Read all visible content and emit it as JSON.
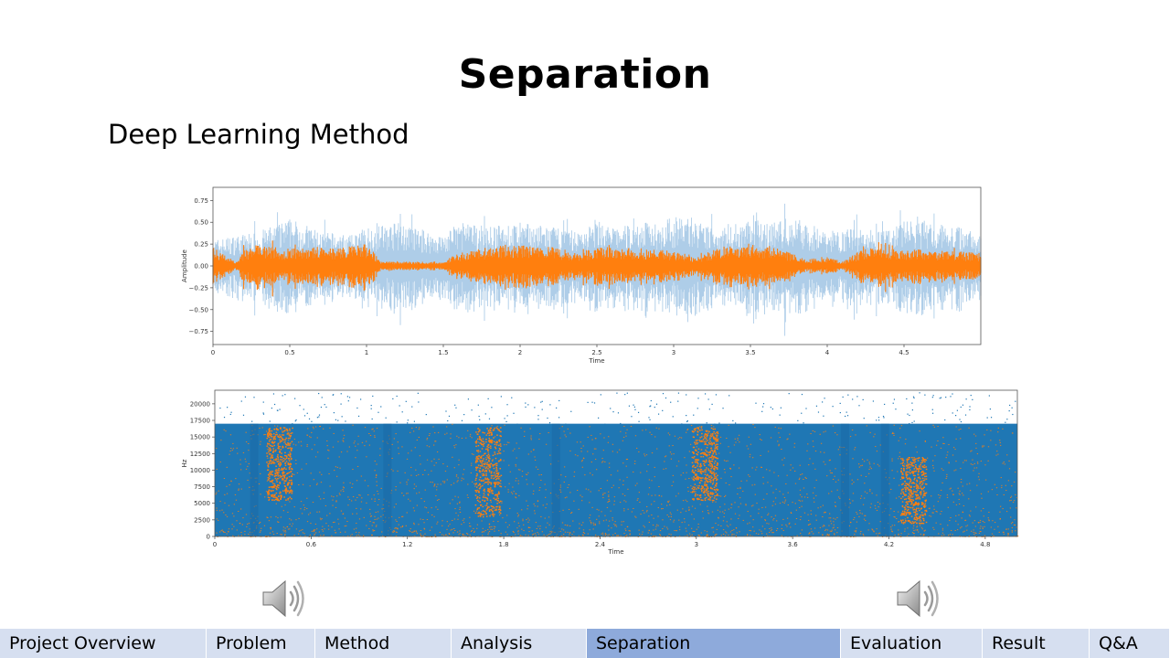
{
  "slide": {
    "title": "Separation",
    "subtitle": "Deep Learning Method"
  },
  "colors": {
    "orange": "#ff7f0e",
    "blue": "#1f77b4",
    "light_blue": "#aecde8",
    "nav_bg": "#d6dff0",
    "nav_active": "#8eaadb"
  },
  "speakers": [
    {
      "icon": "speaker-icon",
      "position": "left"
    },
    {
      "icon": "speaker-icon",
      "position": "right"
    }
  ],
  "nav": {
    "active_index": 4,
    "tabs": [
      {
        "label": "Project Overview",
        "width_hint": 226
      },
      {
        "label": "Problem",
        "width_hint": 119
      },
      {
        "label": "Method",
        "width_hint": 149
      },
      {
        "label": "Analysis",
        "width_hint": 148
      },
      {
        "label": "Separation",
        "width_hint": 278
      },
      {
        "label": "Evaluation",
        "width_hint": 155
      },
      {
        "label": "Result",
        "width_hint": 117
      },
      {
        "label": "Q&A",
        "width_hint": 88
      }
    ]
  },
  "chart_data": [
    {
      "type": "area",
      "xlabel": "Time",
      "ylabel": "Amplitude",
      "xlim": [
        0,
        5
      ],
      "ylim": [
        -0.9,
        0.9
      ],
      "xticks": [
        "0",
        "0.5",
        "1",
        "1.5",
        "2",
        "2.5",
        "3",
        "3.5",
        "4",
        "4.5"
      ],
      "xtick_values": [
        0,
        0.5,
        1,
        1.5,
        2,
        2.5,
        3,
        3.5,
        4,
        4.5
      ],
      "yticks": [
        "0.75",
        "0.50",
        "0.25",
        "0.00",
        "−0.25",
        "−0.50",
        "−0.75"
      ],
      "ytick_values": [
        0.75,
        0.5,
        0.25,
        0,
        -0.25,
        -0.5,
        -0.75
      ],
      "series": [
        {
          "color": "#aecde8",
          "x": [
            0,
            0.15,
            0.3,
            0.45,
            0.5,
            0.7,
            0.9,
            1.0,
            1.2,
            1.4,
            1.5,
            1.6,
            1.8,
            2.0,
            2.2,
            2.4,
            2.5,
            2.6,
            2.8,
            3.0,
            3.1,
            3.2,
            3.4,
            3.5,
            3.6,
            3.8,
            4.0,
            4.2,
            4.4,
            4.5,
            4.7,
            4.9,
            5.0
          ],
          "values": [
            0.3,
            0.35,
            0.4,
            0.5,
            0.55,
            0.4,
            0.35,
            0.45,
            0.5,
            0.4,
            0.35,
            0.5,
            0.45,
            0.5,
            0.45,
            0.4,
            0.55,
            0.45,
            0.5,
            0.55,
            0.6,
            0.45,
            0.5,
            0.55,
            0.5,
            0.55,
            0.4,
            0.45,
            0.4,
            0.55,
            0.5,
            0.45,
            0.4
          ]
        },
        {
          "color": "#ff7f0e",
          "x": [
            0,
            0.15,
            0.2,
            0.3,
            0.45,
            0.6,
            0.8,
            1.0,
            1.1,
            1.3,
            1.5,
            1.6,
            1.75,
            1.9,
            2.2,
            2.35,
            2.5,
            2.8,
            3.0,
            3.15,
            3.3,
            3.5,
            3.7,
            3.85,
            4.0,
            4.1,
            4.25,
            4.45,
            4.7,
            5.0
          ],
          "values": [
            0.22,
            0.05,
            0.18,
            0.25,
            0.2,
            0.22,
            0.2,
            0.25,
            0.05,
            0.05,
            0.05,
            0.15,
            0.2,
            0.25,
            0.22,
            0.15,
            0.22,
            0.2,
            0.18,
            0.1,
            0.22,
            0.25,
            0.2,
            0.08,
            0.1,
            0.05,
            0.22,
            0.2,
            0.18,
            0.15
          ]
        }
      ]
    },
    {
      "type": "scatter",
      "xlabel": "Time",
      "ylabel": "Hz",
      "xlim": [
        0,
        5
      ],
      "ylim": [
        0,
        22050
      ],
      "xticks": [
        "0",
        "0.6",
        "1.2",
        "1.8",
        "2.4",
        "3",
        "3.6",
        "4.2",
        "4.8"
      ],
      "xtick_values": [
        0,
        0.6,
        1.2,
        1.8,
        2.4,
        3,
        3.6,
        4.2,
        4.8
      ],
      "yticks": [
        "20000",
        "17500",
        "15000",
        "12500",
        "10000",
        "7500",
        "5000",
        "2500",
        "0"
      ],
      "ytick_values": [
        20000,
        17500,
        15000,
        12500,
        10000,
        7500,
        5000,
        2500,
        0
      ],
      "band_top": 17000,
      "bursts": [
        {
          "x": 0.4,
          "hz_min": 5500,
          "hz_max": 16500
        },
        {
          "x": 1.7,
          "hz_min": 3000,
          "hz_max": 16500
        },
        {
          "x": 3.05,
          "hz_min": 5500,
          "hz_max": 16500
        },
        {
          "x": 4.35,
          "hz_min": 2000,
          "hz_max": 12000
        }
      ]
    }
  ]
}
